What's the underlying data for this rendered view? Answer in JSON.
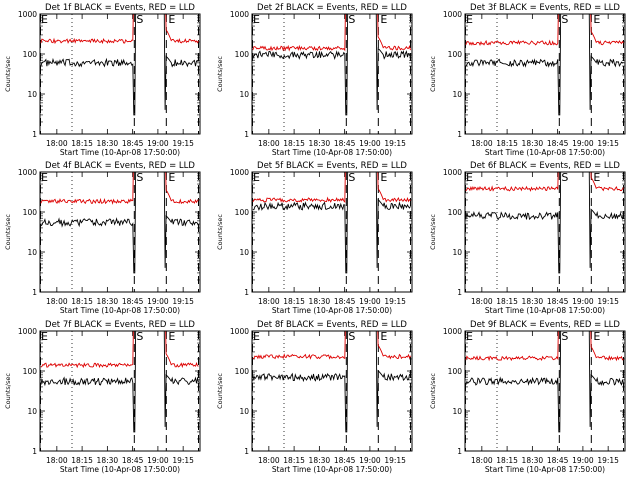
{
  "chart_data": [
    {
      "type": "line",
      "title": "Det 1f BLACK = Events, RED = LLD",
      "ylabel": "Counts/sec",
      "xlabel": "Start Time (10-Apr-08 17:50:00)",
      "scale": "log",
      "ylim": [
        1,
        1000
      ],
      "yticks": [
        "1",
        "10",
        "100",
        "1000"
      ],
      "xticks": [
        "18:00",
        "18:15",
        "18:30",
        "18:45",
        "19:00",
        "19:15"
      ],
      "markers": {
        "start_flag": "S",
        "end_flag": "E"
      },
      "series": [
        {
          "name": "Events",
          "color": "#000000",
          "level": 60
        },
        {
          "name": "LLD",
          "color": "#dd0000",
          "level": 210
        }
      ]
    },
    {
      "type": "line",
      "title": "Det 2f BLACK = Events, RED = LLD",
      "ylabel": "Counts/sec",
      "xlabel": "Start Time (10-Apr-08 17:50:00)",
      "scale": "log",
      "ylim": [
        1,
        1000
      ],
      "yticks": [
        "1",
        "10",
        "100",
        "1000"
      ],
      "xticks": [
        "18:00",
        "18:15",
        "18:30",
        "18:45",
        "19:00",
        "19:15"
      ],
      "markers": {
        "start_flag": "S",
        "end_flag": "E"
      },
      "series": [
        {
          "name": "Events",
          "color": "#000000",
          "level": 95
        },
        {
          "name": "LLD",
          "color": "#dd0000",
          "level": 140
        }
      ]
    },
    {
      "type": "line",
      "title": "Det 3f BLACK = Events, RED = LLD",
      "ylabel": "Counts/sec",
      "xlabel": "Start Time (10-Apr-08 17:50:00)",
      "scale": "log",
      "ylim": [
        1,
        1000
      ],
      "yticks": [
        "1",
        "10",
        "100",
        "1000"
      ],
      "xticks": [
        "18:00",
        "18:15",
        "18:30",
        "18:45",
        "19:00",
        "19:15"
      ],
      "markers": {
        "start_flag": "S",
        "end_flag": "E"
      },
      "series": [
        {
          "name": "Events",
          "color": "#000000",
          "level": 60
        },
        {
          "name": "LLD",
          "color": "#dd0000",
          "level": 190
        }
      ]
    },
    {
      "type": "line",
      "title": "Det 4f BLACK = Events, RED = LLD",
      "ylabel": "Counts/sec",
      "xlabel": "Start Time (10-Apr-08 17:50:00)",
      "scale": "log",
      "ylim": [
        1,
        1000
      ],
      "yticks": [
        "1",
        "10",
        "100",
        "1000"
      ],
      "xticks": [
        "18:00",
        "18:15",
        "18:30",
        "18:45",
        "19:00",
        "19:15"
      ],
      "markers": {
        "start_flag": "S",
        "end_flag": "E"
      },
      "series": [
        {
          "name": "Events",
          "color": "#000000",
          "level": 55
        },
        {
          "name": "LLD",
          "color": "#dd0000",
          "level": 185
        }
      ]
    },
    {
      "type": "line",
      "title": "Det 5f BLACK = Events, RED = LLD",
      "ylabel": "Counts/sec",
      "xlabel": "Start Time (10-Apr-08 17:50:00)",
      "scale": "log",
      "ylim": [
        1,
        1000
      ],
      "yticks": [
        "1",
        "10",
        "100",
        "1000"
      ],
      "xticks": [
        "18:00",
        "18:15",
        "18:30",
        "18:45",
        "19:00",
        "19:15"
      ],
      "markers": {
        "start_flag": "S",
        "end_flag": "E"
      },
      "series": [
        {
          "name": "Events",
          "color": "#000000",
          "level": 140
        },
        {
          "name": "LLD",
          "color": "#dd0000",
          "level": 200
        }
      ]
    },
    {
      "type": "line",
      "title": "Det 6f BLACK = Events, RED = LLD",
      "ylabel": "Counts/sec",
      "xlabel": "Start Time (10-Apr-08 17:50:00)",
      "scale": "log",
      "ylim": [
        1,
        1000
      ],
      "yticks": [
        "1",
        "10",
        "100",
        "1000"
      ],
      "xticks": [
        "18:00",
        "18:15",
        "18:30",
        "18:45",
        "19:00",
        "19:15"
      ],
      "markers": {
        "start_flag": "S",
        "end_flag": "E"
      },
      "series": [
        {
          "name": "Events",
          "color": "#000000",
          "level": 80
        },
        {
          "name": "LLD",
          "color": "#dd0000",
          "level": 380
        }
      ]
    },
    {
      "type": "line",
      "title": "Det 7f BLACK = Events, RED = LLD",
      "ylabel": "Counts/sec",
      "xlabel": "Start Time (10-Apr-08 17:50:00)",
      "scale": "log",
      "ylim": [
        1,
        1000
      ],
      "yticks": [
        "1",
        "10",
        "100",
        "1000"
      ],
      "xticks": [
        "18:00",
        "18:15",
        "18:30",
        "18:45",
        "19:00",
        "19:15"
      ],
      "markers": {
        "start_flag": "S",
        "end_flag": "E"
      },
      "series": [
        {
          "name": "Events",
          "color": "#000000",
          "level": 55
        },
        {
          "name": "LLD",
          "color": "#dd0000",
          "level": 140
        }
      ]
    },
    {
      "type": "line",
      "title": "Det 8f BLACK = Events, RED = LLD",
      "ylabel": "Counts/sec",
      "xlabel": "Start Time (10-Apr-08 17:50:00)",
      "scale": "log",
      "ylim": [
        1,
        1000
      ],
      "yticks": [
        "1",
        "10",
        "100",
        "1000"
      ],
      "xticks": [
        "18:00",
        "18:15",
        "18:30",
        "18:45",
        "19:00",
        "19:15"
      ],
      "markers": {
        "start_flag": "S",
        "end_flag": "E"
      },
      "series": [
        {
          "name": "Events",
          "color": "#000000",
          "level": 70
        },
        {
          "name": "LLD",
          "color": "#dd0000",
          "level": 230
        }
      ]
    },
    {
      "type": "line",
      "title": "Det 9f BLACK = Events, RED = LLD",
      "ylabel": "Counts/sec",
      "xlabel": "Start Time (10-Apr-08 17:50:00)",
      "scale": "log",
      "ylim": [
        1,
        1000
      ],
      "yticks": [
        "1",
        "10",
        "100",
        "1000"
      ],
      "xticks": [
        "18:00",
        "18:15",
        "18:30",
        "18:45",
        "19:00",
        "19:15"
      ],
      "markers": {
        "start_flag": "S",
        "end_flag": "E"
      },
      "series": [
        {
          "name": "Events",
          "color": "#000000",
          "level": 55
        },
        {
          "name": "LLD",
          "color": "#dd0000",
          "level": 210
        }
      ]
    }
  ]
}
